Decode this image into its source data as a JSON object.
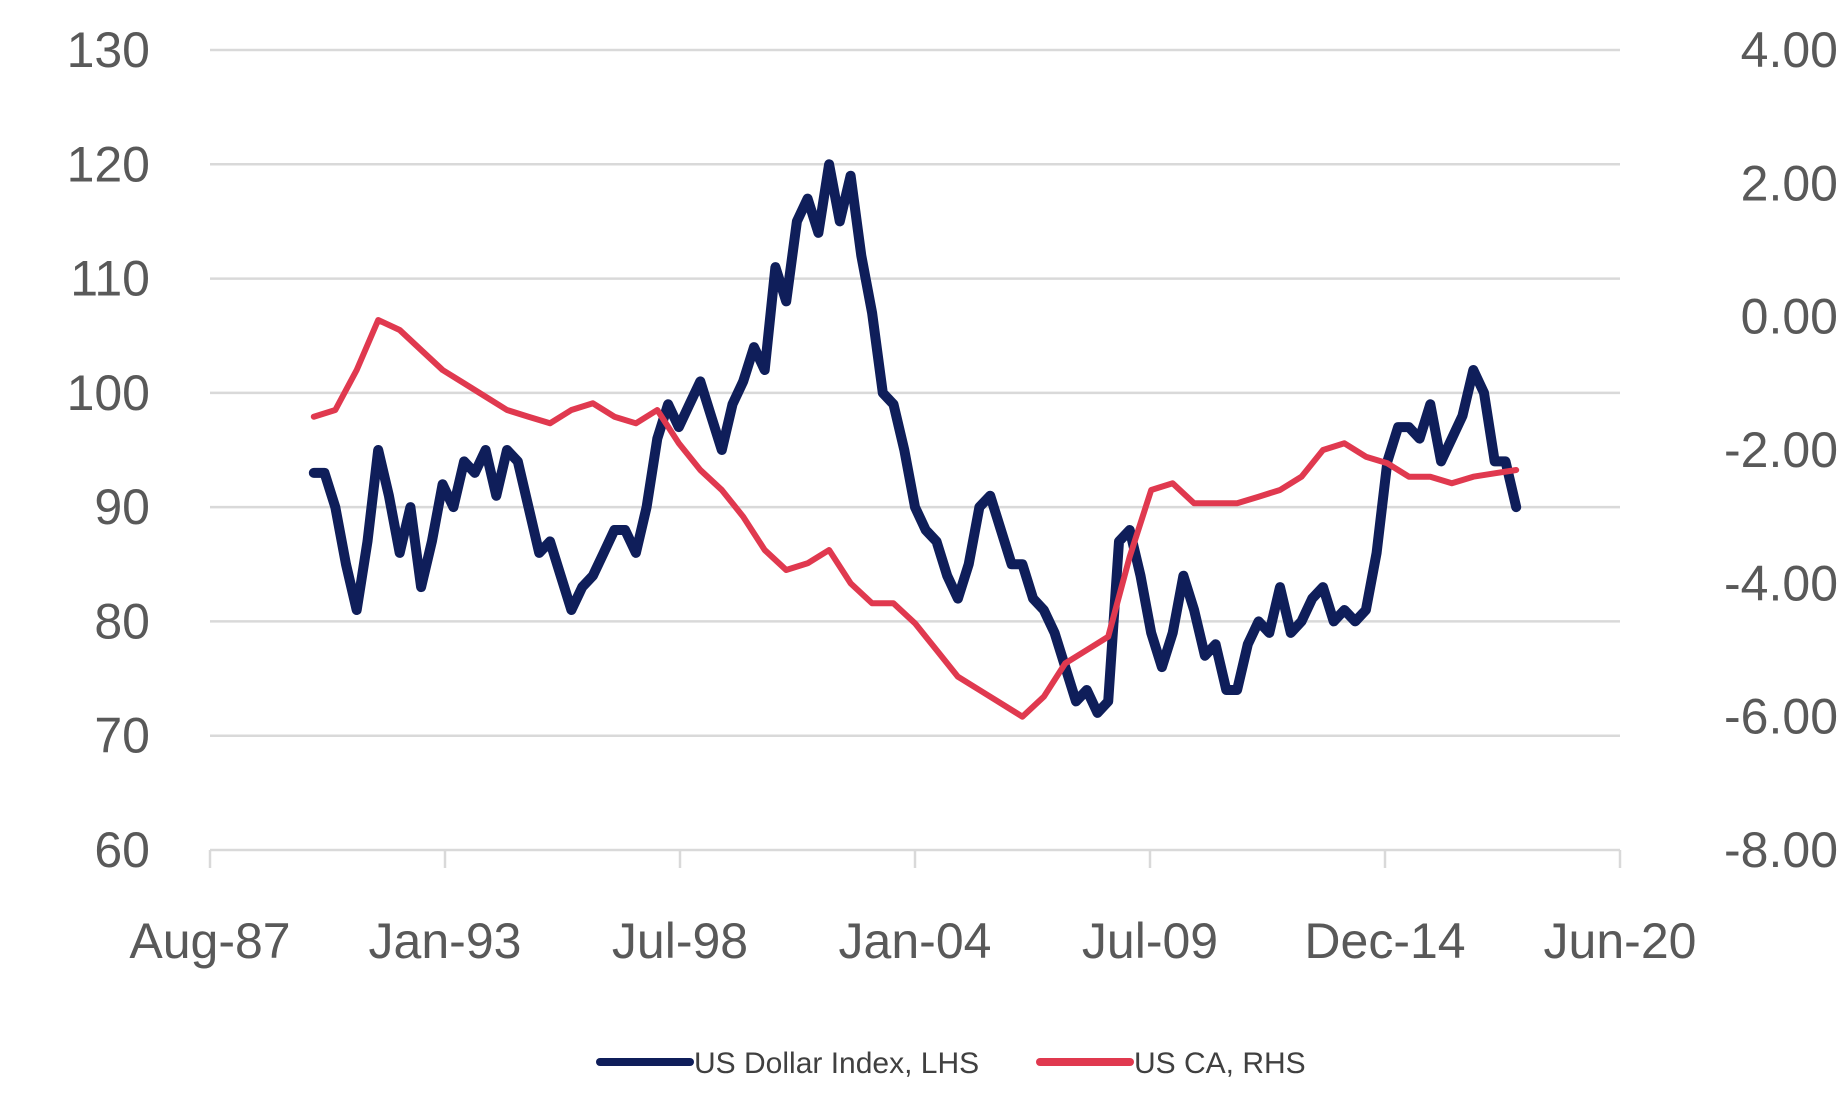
{
  "chart_data": {
    "type": "line",
    "title": "",
    "x_ticks": [
      "Aug-87",
      "Jan-93",
      "Jul-98",
      "Jan-04",
      "Jul-09",
      "Dec-14",
      "Jun-20"
    ],
    "y_left": {
      "ticks": [
        "60",
        "70",
        "80",
        "90",
        "100",
        "110",
        "120",
        "130"
      ],
      "range": [
        60,
        130
      ]
    },
    "y_right": {
      "ticks": [
        "-8.00",
        "-6.00",
        "-4.00",
        "-2.00",
        "0.00",
        "2.00",
        "4.00"
      ],
      "range": [
        -8,
        4
      ]
    },
    "grid": true,
    "legend_position": "bottom",
    "series": [
      {
        "name": "US Dollar Index, LHS",
        "axis": "left",
        "color": "#0f1e5a",
        "points": [
          [
            "1990-01",
            93
          ],
          [
            "1990-04",
            93
          ],
          [
            "1990-07",
            90
          ],
          [
            "1990-10",
            85
          ],
          [
            "1991-01",
            81
          ],
          [
            "1991-04",
            87
          ],
          [
            "1991-07",
            95
          ],
          [
            "1991-10",
            91
          ],
          [
            "1992-01",
            86
          ],
          [
            "1992-04",
            90
          ],
          [
            "1992-07",
            83
          ],
          [
            "1992-10",
            87
          ],
          [
            "1993-01",
            92
          ],
          [
            "1993-04",
            90
          ],
          [
            "1993-07",
            94
          ],
          [
            "1993-10",
            93
          ],
          [
            "1994-01",
            95
          ],
          [
            "1994-04",
            91
          ],
          [
            "1994-07",
            95
          ],
          [
            "1994-10",
            94
          ],
          [
            "1995-01",
            90
          ],
          [
            "1995-04",
            86
          ],
          [
            "1995-07",
            87
          ],
          [
            "1995-10",
            84
          ],
          [
            "1996-01",
            81
          ],
          [
            "1996-04",
            83
          ],
          [
            "1996-07",
            84
          ],
          [
            "1996-10",
            86
          ],
          [
            "1997-01",
            88
          ],
          [
            "1997-04",
            88
          ],
          [
            "1997-07",
            86
          ],
          [
            "1997-10",
            90
          ],
          [
            "1998-01",
            96
          ],
          [
            "1998-04",
            99
          ],
          [
            "1998-07",
            97
          ],
          [
            "1998-10",
            99
          ],
          [
            "1999-01",
            101
          ],
          [
            "1999-04",
            98
          ],
          [
            "1999-07",
            95
          ],
          [
            "1999-10",
            99
          ],
          [
            "2000-01",
            101
          ],
          [
            "2000-04",
            104
          ],
          [
            "2000-07",
            102
          ],
          [
            "2000-10",
            111
          ],
          [
            "2001-01",
            108
          ],
          [
            "2001-04",
            115
          ],
          [
            "2001-07",
            117
          ],
          [
            "2001-10",
            114
          ],
          [
            "2002-01",
            120
          ],
          [
            "2002-04",
            115
          ],
          [
            "2002-07",
            119
          ],
          [
            "2002-10",
            112
          ],
          [
            "2003-01",
            107
          ],
          [
            "2003-04",
            100
          ],
          [
            "2003-07",
            99
          ],
          [
            "2003-10",
            95
          ],
          [
            "2004-01",
            90
          ],
          [
            "2004-04",
            88
          ],
          [
            "2004-07",
            87
          ],
          [
            "2004-10",
            84
          ],
          [
            "2005-01",
            82
          ],
          [
            "2005-04",
            85
          ],
          [
            "2005-07",
            90
          ],
          [
            "2005-10",
            91
          ],
          [
            "2006-01",
            88
          ],
          [
            "2006-04",
            85
          ],
          [
            "2006-07",
            85
          ],
          [
            "2006-10",
            82
          ],
          [
            "2007-01",
            81
          ],
          [
            "2007-04",
            79
          ],
          [
            "2007-07",
            76
          ],
          [
            "2007-10",
            73
          ],
          [
            "2008-01",
            74
          ],
          [
            "2008-04",
            72
          ],
          [
            "2008-07",
            73
          ],
          [
            "2008-10",
            87
          ],
          [
            "2009-01",
            88
          ],
          [
            "2009-04",
            84
          ],
          [
            "2009-07",
            79
          ],
          [
            "2009-10",
            76
          ],
          [
            "2010-01",
            79
          ],
          [
            "2010-04",
            84
          ],
          [
            "2010-07",
            81
          ],
          [
            "2010-10",
            77
          ],
          [
            "2011-01",
            78
          ],
          [
            "2011-04",
            74
          ],
          [
            "2011-07",
            74
          ],
          [
            "2011-10",
            78
          ],
          [
            "2012-01",
            80
          ],
          [
            "2012-04",
            79
          ],
          [
            "2012-07",
            83
          ],
          [
            "2012-10",
            79
          ],
          [
            "2013-01",
            80
          ],
          [
            "2013-04",
            82
          ],
          [
            "2013-07",
            83
          ],
          [
            "2013-10",
            80
          ],
          [
            "2014-01",
            81
          ],
          [
            "2014-04",
            80
          ],
          [
            "2014-07",
            81
          ],
          [
            "2014-10",
            86
          ],
          [
            "2015-01",
            94
          ],
          [
            "2015-04",
            97
          ],
          [
            "2015-07",
            97
          ],
          [
            "2015-10",
            96
          ],
          [
            "2016-01",
            99
          ],
          [
            "2016-04",
            94
          ],
          [
            "2016-07",
            96
          ],
          [
            "2016-10",
            98
          ],
          [
            "2017-01",
            102
          ],
          [
            "2017-04",
            100
          ],
          [
            "2017-07",
            94
          ],
          [
            "2017-10",
            94
          ],
          [
            "2018-01",
            90
          ]
        ]
      },
      {
        "name": "US CA, RHS",
        "axis": "right",
        "color": "#e0394f",
        "points": [
          [
            "1990-01",
            -1.5
          ],
          [
            "1990-07",
            -1.4
          ],
          [
            "1991-01",
            -0.8
          ],
          [
            "1991-07",
            -0.05
          ],
          [
            "1992-01",
            -0.2
          ],
          [
            "1992-07",
            -0.5
          ],
          [
            "1993-01",
            -0.8
          ],
          [
            "1993-07",
            -1.0
          ],
          [
            "1994-01",
            -1.2
          ],
          [
            "1994-07",
            -1.4
          ],
          [
            "1995-01",
            -1.5
          ],
          [
            "1995-07",
            -1.6
          ],
          [
            "1996-01",
            -1.4
          ],
          [
            "1996-07",
            -1.3
          ],
          [
            "1997-01",
            -1.5
          ],
          [
            "1997-07",
            -1.6
          ],
          [
            "1998-01",
            -1.4
          ],
          [
            "1998-07",
            -1.9
          ],
          [
            "1999-01",
            -2.3
          ],
          [
            "1999-07",
            -2.6
          ],
          [
            "2000-01",
            -3.0
          ],
          [
            "2000-07",
            -3.5
          ],
          [
            "2001-01",
            -3.8
          ],
          [
            "2001-07",
            -3.7
          ],
          [
            "2002-01",
            -3.5
          ],
          [
            "2002-07",
            -4.0
          ],
          [
            "2003-01",
            -4.3
          ],
          [
            "2003-07",
            -4.3
          ],
          [
            "2004-01",
            -4.6
          ],
          [
            "2004-07",
            -5.0
          ],
          [
            "2005-01",
            -5.4
          ],
          [
            "2005-07",
            -5.6
          ],
          [
            "2006-01",
            -5.8
          ],
          [
            "2006-07",
            -6.0
          ],
          [
            "2007-01",
            -5.7
          ],
          [
            "2007-07",
            -5.2
          ],
          [
            "2008-01",
            -5.0
          ],
          [
            "2008-07",
            -4.8
          ],
          [
            "2009-01",
            -3.6
          ],
          [
            "2009-07",
            -2.6
          ],
          [
            "2010-01",
            -2.5
          ],
          [
            "2010-07",
            -2.8
          ],
          [
            "2011-01",
            -2.8
          ],
          [
            "2011-07",
            -2.8
          ],
          [
            "2012-01",
            -2.7
          ],
          [
            "2012-07",
            -2.6
          ],
          [
            "2013-01",
            -2.4
          ],
          [
            "2013-07",
            -2.0
          ],
          [
            "2014-01",
            -1.9
          ],
          [
            "2014-07",
            -2.1
          ],
          [
            "2015-01",
            -2.2
          ],
          [
            "2015-07",
            -2.4
          ],
          [
            "2016-01",
            -2.4
          ],
          [
            "2016-07",
            -2.5
          ],
          [
            "2017-01",
            -2.4
          ],
          [
            "2017-07",
            -2.35
          ],
          [
            "2018-01",
            -2.3
          ]
        ]
      }
    ]
  }
}
